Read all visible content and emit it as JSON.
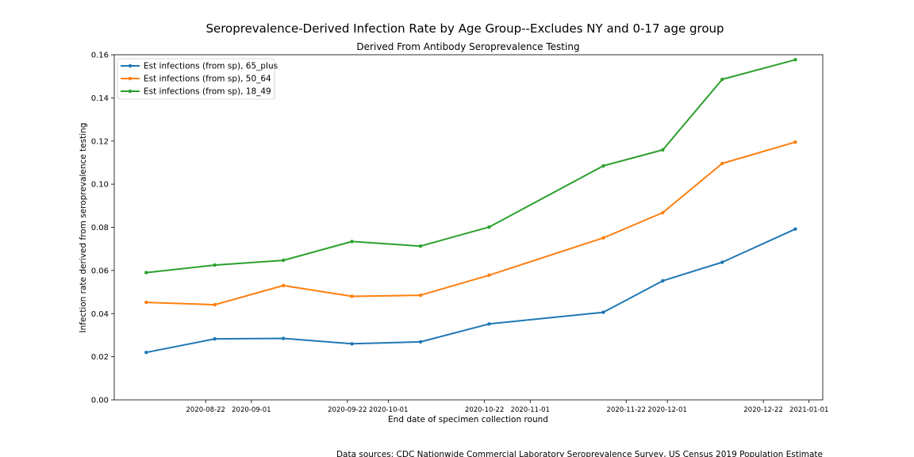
{
  "chart_data": {
    "type": "line",
    "title": "Seroprevalence-Derived Infection Rate by Age Group--Excludes NY and 0-17 age group",
    "subtitle": "Derived From Antibody Seroprevalence Testing",
    "xlabel": "End date of specimen collection round",
    "ylabel": "Infection rate derived from seroprevalence testing",
    "ylim": [
      0,
      0.16
    ],
    "xlim": [
      "2020-08-02",
      "2021-01-04"
    ],
    "yticks": [
      "0.00",
      "0.02",
      "0.04",
      "0.06",
      "0.08",
      "0.10",
      "0.12",
      "0.14",
      "0.16"
    ],
    "xticks": [
      "2020-08-22",
      "2020-09-01",
      "2020-09-22",
      "2020-10-01",
      "2020-10-22",
      "2020-11-01",
      "2020-11-22",
      "2020-12-01",
      "2020-12-22",
      "2021-01-01"
    ],
    "x": [
      "2020-08-09",
      "2020-08-24",
      "2020-09-08",
      "2020-09-23",
      "2020-10-08",
      "2020-10-23",
      "2020-11-17",
      "2020-11-30",
      "2020-12-13",
      "2020-12-29"
    ],
    "legend_position": "upper-left",
    "grid": false,
    "series": [
      {
        "name": "Est infections (from sp), 65_plus",
        "color": "#1f77b4",
        "values": [
          0.022,
          0.0283,
          0.0285,
          0.026,
          0.0269,
          0.0352,
          0.0406,
          0.0552,
          0.0638,
          0.0792
        ]
      },
      {
        "name": "Est infections (from sp), 50_64",
        "color": "#ff7f0e",
        "values": [
          0.0452,
          0.0441,
          0.053,
          0.048,
          0.0485,
          0.0578,
          0.0751,
          0.0868,
          0.1096,
          0.1195
        ]
      },
      {
        "name": "Est infections (from sp), 18_49",
        "color": "#2ca02c",
        "values": [
          0.059,
          0.0625,
          0.0647,
          0.0734,
          0.0713,
          0.0801,
          0.1085,
          0.1159,
          0.1486,
          0.1577
        ]
      }
    ],
    "source": "Data sources: CDC Nationwide Commercial Laboratory Seroprevalence Survey, US Census 2019 Population Estimate"
  }
}
